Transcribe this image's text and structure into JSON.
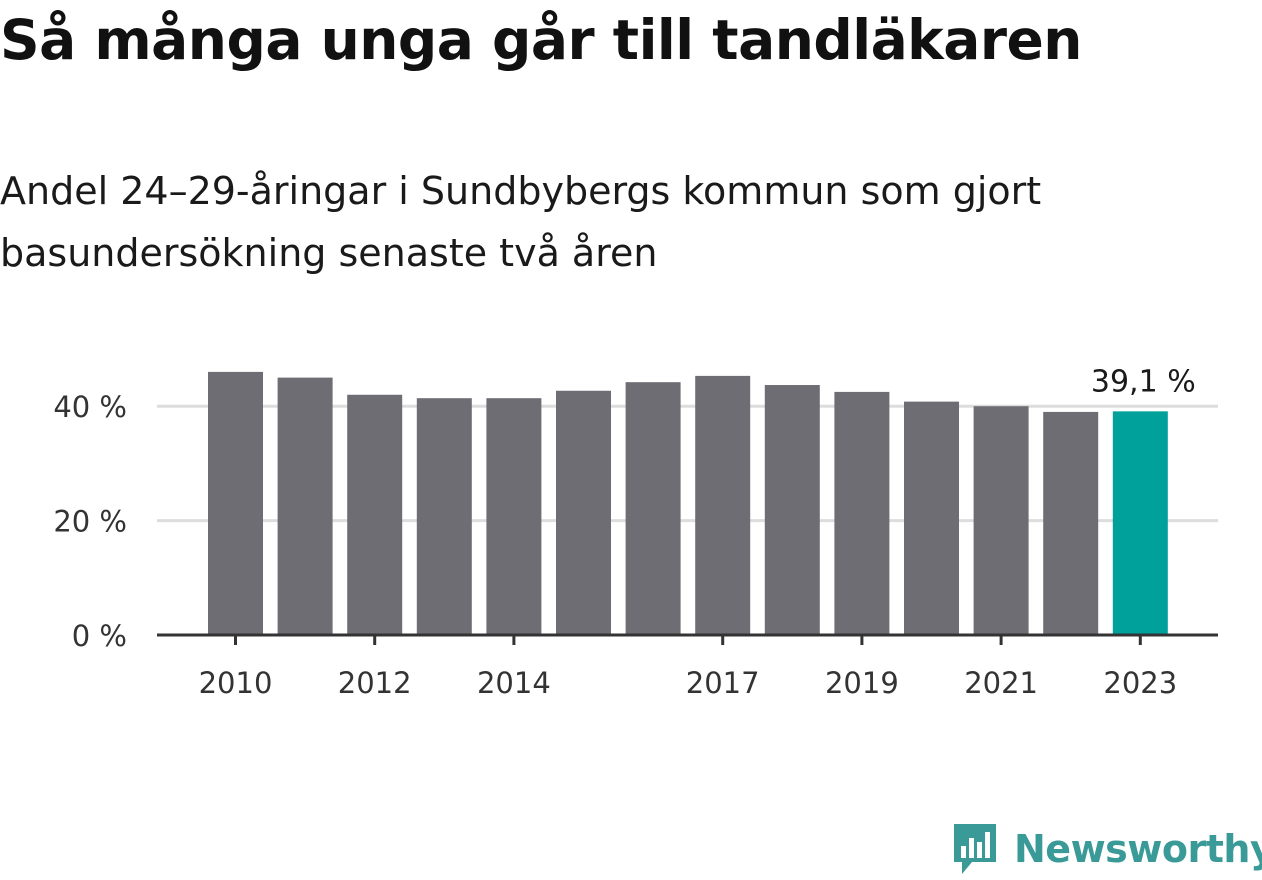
{
  "title": "Så många unga går till tandläkaren",
  "subtitle": "Andel 24–29-åringar i Sundbybergs kommun som gjort basundersökning senaste två åren",
  "brand": {
    "name": "Newsworthy",
    "logo_icon": "newsworthy-chart-bubble-icon",
    "color": "#3a9a97"
  },
  "chart_data": {
    "type": "bar",
    "title": "Så många unga går till tandläkaren",
    "subtitle": "Andel 24–29-åringar i Sundbybergs kommun som gjort basundersökning senaste två åren",
    "xlabel": "",
    "ylabel": "",
    "categories": [
      "2010",
      "2011",
      "2012",
      "2013",
      "2014",
      "2015",
      "2016",
      "2017",
      "2018",
      "2019",
      "2020",
      "2021",
      "2022",
      "2023"
    ],
    "values": [
      46.0,
      45.0,
      42.0,
      41.4,
      41.4,
      42.7,
      44.2,
      45.3,
      43.7,
      42.5,
      40.8,
      40.0,
      39.0,
      39.1
    ],
    "x_tick_labels": [
      "2010",
      "2012",
      "2014",
      "2017",
      "2019",
      "2021",
      "2023"
    ],
    "y_ticks": [
      0,
      20,
      40
    ],
    "y_tick_labels": [
      "0 %",
      "20 %",
      "40 %"
    ],
    "ylim": [
      0,
      50
    ],
    "grid": true,
    "highlight": {
      "category": "2023",
      "label": "39,1 %"
    },
    "colors": {
      "bar": "#6f6d74",
      "highlight": "#00a19a",
      "grid": "#dddddd",
      "axis": "#333333"
    }
  }
}
